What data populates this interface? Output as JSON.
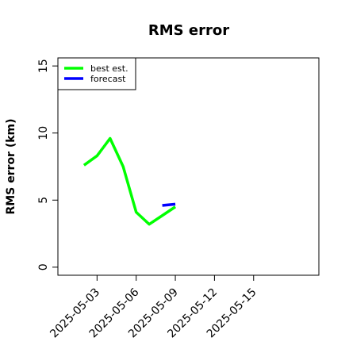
{
  "chart_data": {
    "type": "line",
    "title": "RMS error",
    "y_label": "RMS error (km)",
    "x": [
      "2025-05-02",
      "2025-05-03",
      "2025-05-04",
      "2025-05-05",
      "2025-05-06",
      "2025-05-07",
      "2025-05-08",
      "2025-05-09"
    ],
    "series": [
      {
        "name": "best est.",
        "color": "#00ff00",
        "values": [
          7.6,
          8.3,
          9.6,
          7.5,
          4.1,
          3.2,
          3.85,
          4.5
        ]
      },
      {
        "name": "forecast",
        "color": "#0000ff",
        "values": [
          null,
          null,
          null,
          null,
          null,
          null,
          4.6,
          4.7
        ]
      }
    ],
    "xlim": [
      "2025-04-30",
      "2025-05-20"
    ],
    "xticks": [
      "2025-05-03",
      "2025-05-06",
      "2025-05-09",
      "2025-05-12",
      "2025-05-15"
    ],
    "ylim": [
      -0.6,
      15.6
    ],
    "yticks": [
      0,
      5,
      10,
      15
    ],
    "legend": "top-left"
  }
}
